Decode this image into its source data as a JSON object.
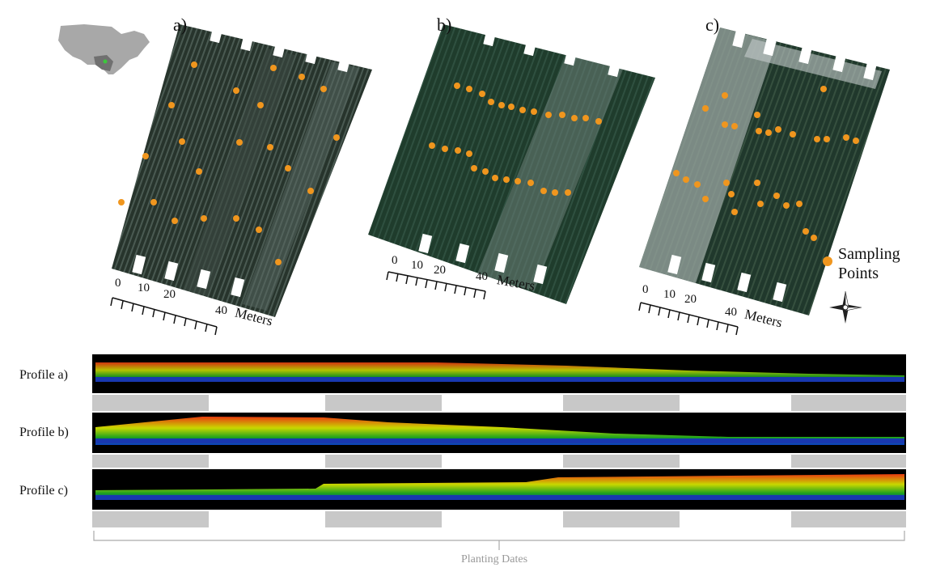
{
  "panels": [
    {
      "label": "a)"
    },
    {
      "label": "b)"
    },
    {
      "label": "c)"
    }
  ],
  "scale": {
    "n0": "0",
    "n10": "10",
    "n20": "20",
    "n40": "40",
    "unit": "Meters"
  },
  "legend": {
    "line1": "Sampling",
    "line2": "Points",
    "color": "#f0961e"
  },
  "profiles": [
    {
      "label": "Profile a)"
    },
    {
      "label": "Profile b)"
    },
    {
      "label": "Profile c)"
    }
  ],
  "planting_dates_label": "Planting Dates",
  "colors": {
    "field_dark": "#2a3a2e",
    "field_green": "#243f30",
    "field_light": "#7d8a86",
    "profile_bg": "#000000",
    "stripe_gray": "#c8c8c8",
    "marker": "#f0961e"
  }
}
